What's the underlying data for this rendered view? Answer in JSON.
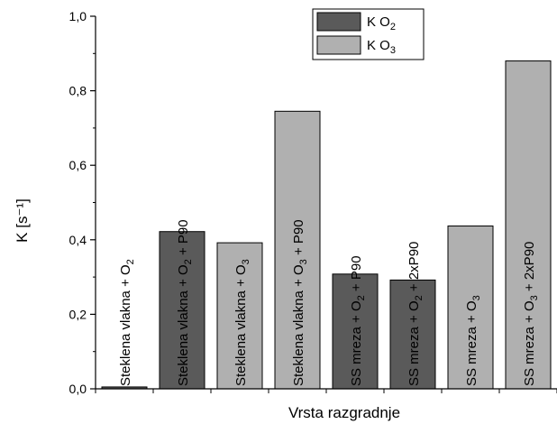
{
  "chart_data": {
    "type": "bar",
    "xlabel": "Vrsta razgradnje",
    "ylabel": "K [s⁻¹]",
    "ylim": [
      0,
      1.0
    ],
    "yticks": [
      0.0,
      0.2,
      0.4,
      0.6,
      0.8,
      1.0
    ],
    "ytick_labels": [
      "0,0",
      "0,2",
      "0,4",
      "0,6",
      "0,8",
      "1,0"
    ],
    "grid": false,
    "legend_position": "top-right",
    "series": [
      {
        "name": "K O2",
        "color": "#5a5a5a"
      },
      {
        "name": "K O3",
        "color": "#b0b0b0"
      }
    ],
    "legend": [
      {
        "prefix": "K O",
        "sub": "2",
        "color": "#5a5a5a"
      },
      {
        "prefix": "K O",
        "sub": "3",
        "color": "#b0b0b0"
      }
    ],
    "bars": [
      {
        "value": 0.005,
        "series": 0,
        "label": [
          {
            "t": "Steklena vlakna + O"
          },
          {
            "t": "2",
            "sub": true
          }
        ]
      },
      {
        "value": 0.422,
        "series": 0,
        "label": [
          {
            "t": "Steklena vlakna + O"
          },
          {
            "t": "2",
            "sub": true
          },
          {
            "t": " + P90"
          }
        ]
      },
      {
        "value": 0.392,
        "series": 1,
        "label": [
          {
            "t": "Steklena vlakna + O"
          },
          {
            "t": "3",
            "sub": true
          }
        ]
      },
      {
        "value": 0.745,
        "series": 1,
        "label": [
          {
            "t": "Steklena vlakna + O"
          },
          {
            "t": "3",
            "sub": true
          },
          {
            "t": " + P90"
          }
        ]
      },
      {
        "value": 0.308,
        "series": 0,
        "label": [
          {
            "t": "SS mreza + O"
          },
          {
            "t": "2",
            "sub": true
          },
          {
            "t": " + P90"
          }
        ]
      },
      {
        "value": 0.292,
        "series": 0,
        "label": [
          {
            "t": "SS mreza + O"
          },
          {
            "t": "2",
            "sub": true
          },
          {
            "t": " + 2xP90"
          }
        ]
      },
      {
        "value": 0.437,
        "series": 1,
        "label": [
          {
            "t": "SS mreza + O"
          },
          {
            "t": "3",
            "sub": true
          }
        ]
      },
      {
        "value": 0.88,
        "series": 1,
        "label": [
          {
            "t": "SS mreza + O"
          },
          {
            "t": "3",
            "sub": true
          },
          {
            "t": " + 2xP90"
          }
        ]
      }
    ]
  }
}
